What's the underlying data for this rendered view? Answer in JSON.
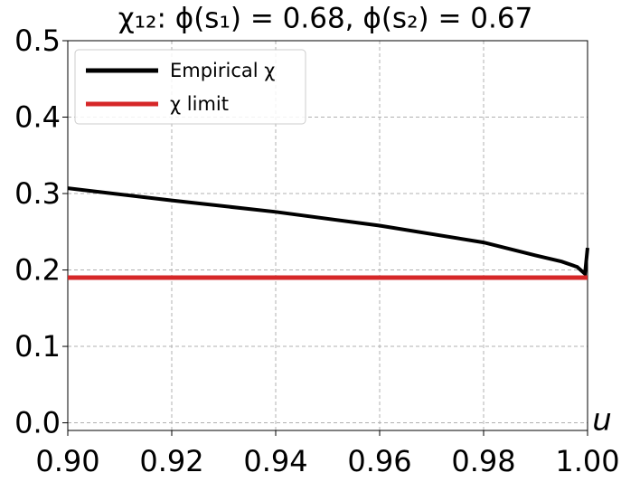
{
  "chart_data": {
    "type": "line",
    "title": "χ₁₂: ϕ(s₁) = 0.68, ϕ(s₂) = 0.67",
    "x_label": "u",
    "xlim": [
      0.9,
      1.0
    ],
    "ylim": [
      -0.01,
      0.5
    ],
    "xticks": [
      {
        "value": 0.9,
        "label": "0.90"
      },
      {
        "value": 0.92,
        "label": "0.92"
      },
      {
        "value": 0.94,
        "label": "0.94"
      },
      {
        "value": 0.96,
        "label": "0.96"
      },
      {
        "value": 0.98,
        "label": "0.98"
      },
      {
        "value": 1.0,
        "label": "1.00"
      }
    ],
    "yticks": [
      {
        "value": 0,
        "label": "0.0"
      },
      0.1,
      0.2,
      0.3,
      0.4,
      0.5
    ],
    "grid": true,
    "legend": "upper left",
    "series": [
      {
        "name": "Empirical χ",
        "color": "#000000",
        "x": [
          0.9,
          0.92,
          0.94,
          0.96,
          0.98,
          0.99,
          0.995,
          0.998,
          0.999,
          0.9995,
          1.0
        ],
        "values": [
          0.307,
          0.291,
          0.276,
          0.258,
          0.236,
          0.219,
          0.211,
          0.204,
          0.198,
          0.195,
          0.229
        ]
      },
      {
        "name": "χ limit",
        "color": "#d62728",
        "x": [
          0.9,
          1.0
        ],
        "values": [
          0.19,
          0.19
        ]
      }
    ]
  }
}
